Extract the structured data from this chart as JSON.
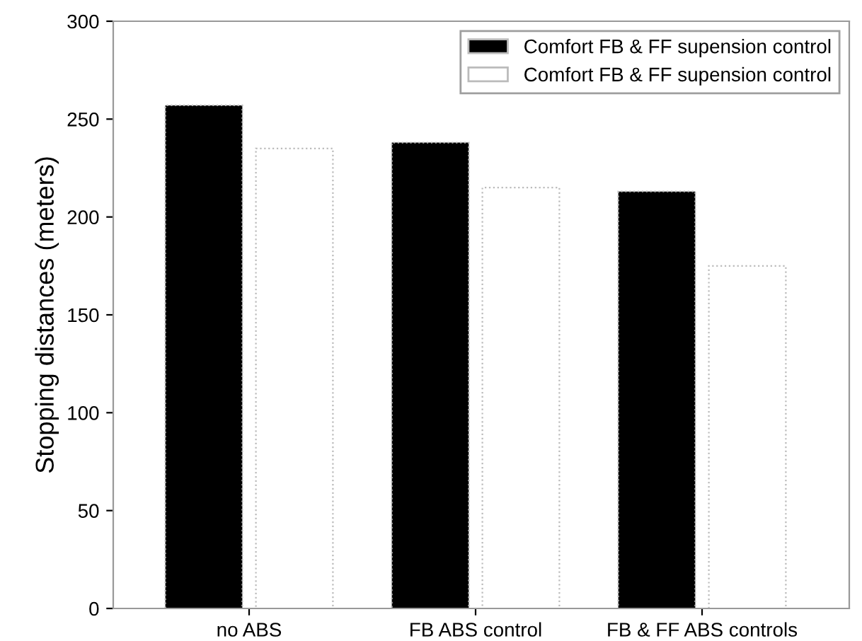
{
  "chart_data": {
    "type": "bar",
    "ylabel": "Stopping distances (meters)",
    "categories": [
      "no ABS",
      "FB ABS control",
      "FB & FF ABS controls"
    ],
    "series": [
      {
        "name": "Comfort FB & FF supension control",
        "color": "#000000",
        "values": [
          257,
          238,
          213
        ]
      },
      {
        "name": "Comfort FB & FF supension control",
        "color": "#ffffff",
        "values": [
          235,
          215,
          175
        ]
      }
    ],
    "ylim": [
      0,
      300
    ],
    "yticks": [
      0,
      50,
      100,
      150,
      200,
      250,
      300
    ],
    "grid": false,
    "legend": "top right"
  }
}
